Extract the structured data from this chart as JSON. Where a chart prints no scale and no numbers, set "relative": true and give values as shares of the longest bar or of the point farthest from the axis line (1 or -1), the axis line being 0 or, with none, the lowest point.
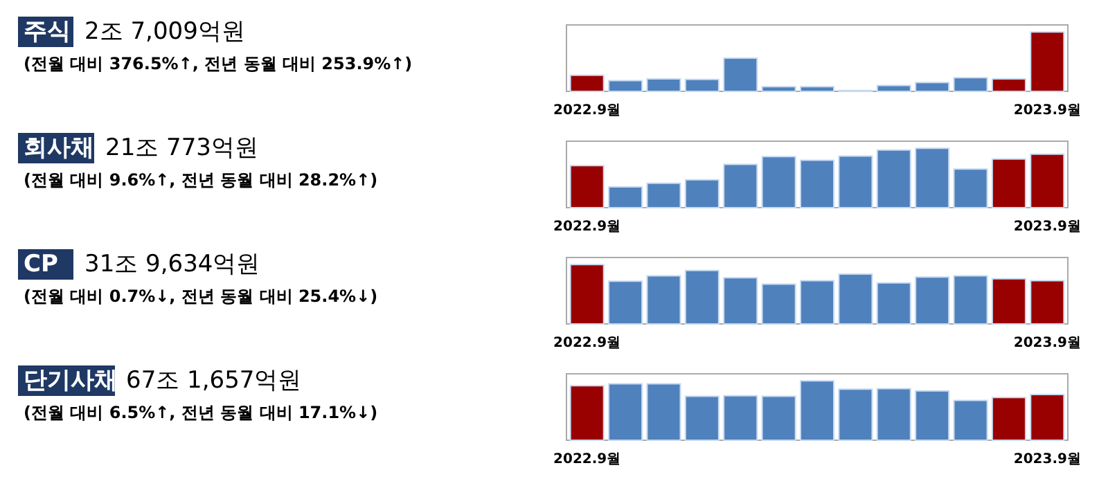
{
  "chart_data": [
    {
      "type": "bar",
      "relative": true,
      "annotations": [
        "주식",
        "2조 7,009억원",
        "(전월 대비 376.5%↑, 전년 동월 대비 253.9%↑)"
      ],
      "categories": [
        "2022.9월",
        null,
        null,
        null,
        null,
        null,
        null,
        null,
        null,
        null,
        null,
        null,
        "2023.9월"
      ],
      "values": [
        0.27,
        0.18,
        0.21,
        0.2,
        0.56,
        0.08,
        0.08,
        0.015,
        0.1,
        0.15,
        0.23,
        0.21,
        1
      ],
      "colors": [
        "#990000",
        "#4f81bd",
        "#4f81bd",
        "#4f81bd",
        "#4f81bd",
        "#4f81bd",
        "#4f81bd",
        "#4f81bd",
        "#4f81bd",
        "#4f81bd",
        "#4f81bd",
        "#990000",
        "#990000"
      ]
    },
    {
      "type": "bar",
      "relative": true,
      "annotations": [
        "회사채",
        "21조 773억원",
        "(전월 대비 9.6%↑, 전년 동월 대비 28.2%↑)"
      ],
      "categories": [
        "2022.9월",
        null,
        null,
        null,
        null,
        null,
        null,
        null,
        null,
        null,
        null,
        null,
        "2023.9월"
      ],
      "values": [
        0.71,
        0.35,
        0.41,
        0.47,
        0.73,
        0.86,
        0.8,
        0.87,
        0.97,
        1,
        0.65,
        0.82,
        0.9
      ],
      "colors": [
        "#990000",
        "#4f81bd",
        "#4f81bd",
        "#4f81bd",
        "#4f81bd",
        "#4f81bd",
        "#4f81bd",
        "#4f81bd",
        "#4f81bd",
        "#4f81bd",
        "#4f81bd",
        "#990000",
        "#990000"
      ]
    },
    {
      "type": "bar",
      "relative": true,
      "annotations": [
        "CP",
        "31조 9,634억원",
        "(전월 대비 0.7%↓, 전년 동월 대비 25.4%↓)"
      ],
      "categories": [
        "2022.9월",
        null,
        null,
        null,
        null,
        null,
        null,
        null,
        null,
        null,
        null,
        null,
        "2023.9월"
      ],
      "values": [
        1,
        0.72,
        0.81,
        0.9,
        0.78,
        0.67,
        0.73,
        0.84,
        0.69,
        0.79,
        0.81,
        0.76,
        0.73
      ],
      "colors": [
        "#990000",
        "#4f81bd",
        "#4f81bd",
        "#4f81bd",
        "#4f81bd",
        "#4f81bd",
        "#4f81bd",
        "#4f81bd",
        "#4f81bd",
        "#4f81bd",
        "#4f81bd",
        "#990000",
        "#990000"
      ]
    },
    {
      "type": "bar",
      "relative": true,
      "annotations": [
        "단기사채",
        "67조 1,657억원",
        "(전월 대비 6.5%↑, 전년 동월 대비 17.1%↓)"
      ],
      "categories": [
        "2022.9월",
        null,
        null,
        null,
        null,
        null,
        null,
        null,
        null,
        null,
        null,
        null,
        "2023.9월"
      ],
      "values": [
        0.92,
        0.95,
        0.95,
        0.74,
        0.75,
        0.74,
        1,
        0.86,
        0.87,
        0.83,
        0.67,
        0.72,
        0.77
      ],
      "colors": [
        "#990000",
        "#4f81bd",
        "#4f81bd",
        "#4f81bd",
        "#4f81bd",
        "#4f81bd",
        "#4f81bd",
        "#4f81bd",
        "#4f81bd",
        "#4f81bd",
        "#4f81bd",
        "#990000",
        "#990000"
      ]
    }
  ]
}
